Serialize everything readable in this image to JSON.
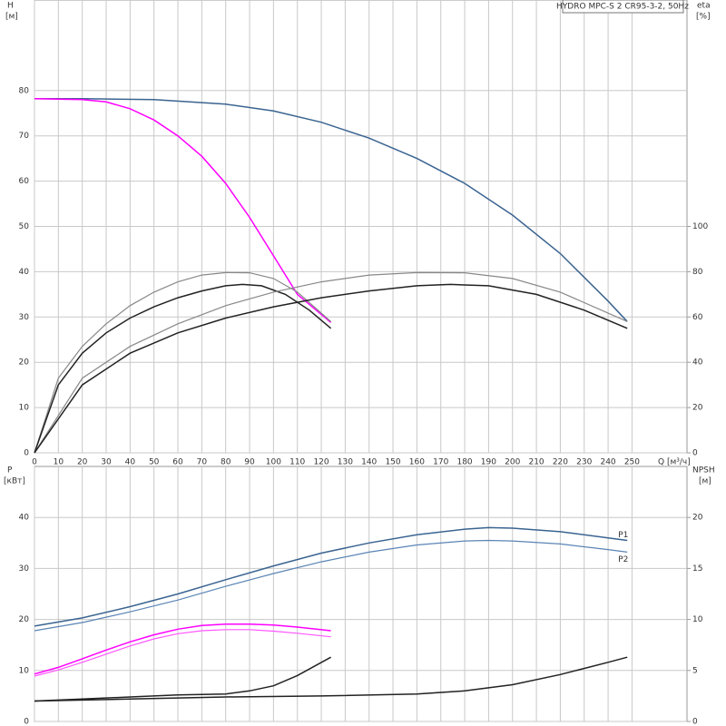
{
  "chart_data": [
    {
      "type": "line",
      "title": "HYDRO MPC-S 2 CR95-3-2, 50Hz",
      "y_label": "H",
      "y_unit": "[м]",
      "y2_label": "eta",
      "y2_unit": "[%]",
      "x_label": "Q [м³/ч]",
      "xlim": [
        0,
        273
      ],
      "xticks": [
        0,
        10,
        20,
        30,
        40,
        50,
        60,
        70,
        80,
        90,
        100,
        110,
        120,
        130,
        140,
        150,
        160,
        170,
        180,
        190,
        200,
        210,
        220,
        230,
        240,
        250
      ],
      "ylim": [
        0,
        100
      ],
      "yticks": [
        0,
        10,
        20,
        30,
        40,
        50,
        60,
        70,
        80
      ],
      "y2lim": [
        0,
        200
      ],
      "y2ticks": [
        0,
        20,
        40,
        60,
        80,
        100
      ],
      "grid": true,
      "series": [
        {
          "color": "#3a6491",
          "width": 1.5,
          "x": [
            0,
            20,
            50,
            80,
            100,
            120,
            140,
            160,
            180,
            200,
            220,
            240,
            248
          ],
          "values": [
            78.2,
            78.2,
            78,
            77,
            75.5,
            73,
            69.5,
            65,
            59.5,
            52.5,
            44,
            33.5,
            29
          ]
        },
        {
          "color": "#ff00ff",
          "width": 1.5,
          "x": [
            0,
            20,
            30,
            40,
            50,
            60,
            70,
            80,
            90,
            100,
            110,
            124
          ],
          "values": [
            78.2,
            78,
            77.5,
            76,
            73.5,
            70,
            65.5,
            59.5,
            52,
            43.5,
            35,
            28.8
          ]
        },
        {
          "color": "#888888",
          "width": 1.2,
          "axis": "y2",
          "x": [
            0,
            10,
            20,
            30,
            40,
            50,
            60,
            70,
            80,
            90,
            100,
            110,
            124
          ],
          "values": [
            0,
            33,
            47,
            57,
            65,
            71,
            75.5,
            78.5,
            79.6,
            79.5,
            77,
            71,
            58
          ]
        },
        {
          "color": "#222222",
          "width": 1.5,
          "axis": "y2",
          "x": [
            0,
            10,
            20,
            30,
            40,
            50,
            60,
            70,
            80,
            87,
            95,
            105,
            115,
            124
          ],
          "values": [
            0,
            30,
            44,
            53,
            59.5,
            64.5,
            68.5,
            71.5,
            73.8,
            74.4,
            73.8,
            70,
            63,
            55
          ]
        },
        {
          "color": "#888888",
          "width": 1.2,
          "axis": "y2",
          "x": [
            0,
            20,
            40,
            60,
            80,
            100,
            120,
            140,
            160,
            180,
            200,
            220,
            248
          ],
          "values": [
            0,
            33,
            47,
            57,
            65,
            71,
            75.5,
            78.5,
            79.6,
            79.5,
            77,
            71,
            58
          ]
        },
        {
          "color": "#222222",
          "width": 1.5,
          "axis": "y2",
          "x": [
            0,
            20,
            40,
            60,
            80,
            100,
            120,
            140,
            160,
            174,
            190,
            210,
            230,
            248
          ],
          "values": [
            0,
            30,
            44,
            53,
            59.5,
            64.5,
            68.5,
            71.5,
            73.8,
            74.4,
            73.8,
            70,
            63,
            55
          ]
        }
      ]
    },
    {
      "type": "line",
      "y_label": "P",
      "y_unit": "[кВт]",
      "y2_label": "NPSH",
      "y2_unit": "[м]",
      "xlim": [
        0,
        273
      ],
      "xticks": [
        0,
        10,
        20,
        30,
        40,
        50,
        60,
        70,
        80,
        90,
        100,
        110,
        120,
        130,
        140,
        150,
        160,
        170,
        180,
        190,
        200,
        210,
        220,
        230,
        240,
        250
      ],
      "ylim": [
        0,
        50
      ],
      "yticks": [
        0,
        10,
        20,
        30,
        40
      ],
      "y2lim": [
        0,
        25
      ],
      "y2ticks": [
        0,
        5,
        10,
        15,
        20
      ],
      "grid": true,
      "series": [
        {
          "name": "P1",
          "color": "#3a6491",
          "width": 1.5,
          "x": [
            0,
            20,
            40,
            60,
            80,
            100,
            120,
            140,
            160,
            180,
            190,
            200,
            220,
            240,
            248
          ],
          "values": [
            18.7,
            20.3,
            22.5,
            25,
            27.8,
            30.5,
            33,
            35,
            36.6,
            37.7,
            38,
            37.9,
            37.2,
            36,
            35.5
          ]
        },
        {
          "name": "P2",
          "color": "#5a84b5",
          "width": 1.2,
          "x": [
            0,
            20,
            40,
            60,
            80,
            100,
            120,
            140,
            160,
            180,
            190,
            200,
            220,
            240,
            248
          ],
          "values": [
            17.8,
            19.4,
            21.5,
            23.8,
            26.5,
            29,
            31.3,
            33.2,
            34.6,
            35.4,
            35.5,
            35.4,
            34.8,
            33.7,
            33.2
          ]
        },
        {
          "color": "#ff00ff",
          "width": 1.5,
          "x": [
            0,
            10,
            20,
            30,
            40,
            50,
            60,
            70,
            80,
            90,
            100,
            110,
            124
          ],
          "values": [
            9.3,
            10.6,
            12.3,
            14,
            15.6,
            17,
            18.1,
            18.8,
            19.1,
            19.1,
            18.9,
            18.5,
            17.8
          ]
        },
        {
          "color": "#ff55ff",
          "width": 1.2,
          "x": [
            0,
            10,
            20,
            30,
            40,
            50,
            60,
            70,
            80,
            90,
            100,
            110,
            124
          ],
          "values": [
            8.9,
            10.1,
            11.6,
            13.2,
            14.8,
            16.2,
            17.2,
            17.8,
            18,
            18,
            17.7,
            17.3,
            16.6
          ]
        },
        {
          "color": "#222222",
          "width": 1.5,
          "axis": "y2",
          "x": [
            0,
            20,
            40,
            60,
            80,
            90,
            100,
            110,
            124
          ],
          "values": [
            2,
            2.2,
            2.4,
            2.6,
            2.7,
            3,
            3.5,
            4.5,
            6.3
          ]
        },
        {
          "color": "#222222",
          "width": 1.5,
          "axis": "y2",
          "x": [
            0,
            40,
            80,
            120,
            160,
            180,
            200,
            220,
            240,
            248
          ],
          "values": [
            2,
            2.2,
            2.4,
            2.5,
            2.7,
            3,
            3.6,
            4.6,
            5.8,
            6.3
          ]
        }
      ]
    }
  ]
}
